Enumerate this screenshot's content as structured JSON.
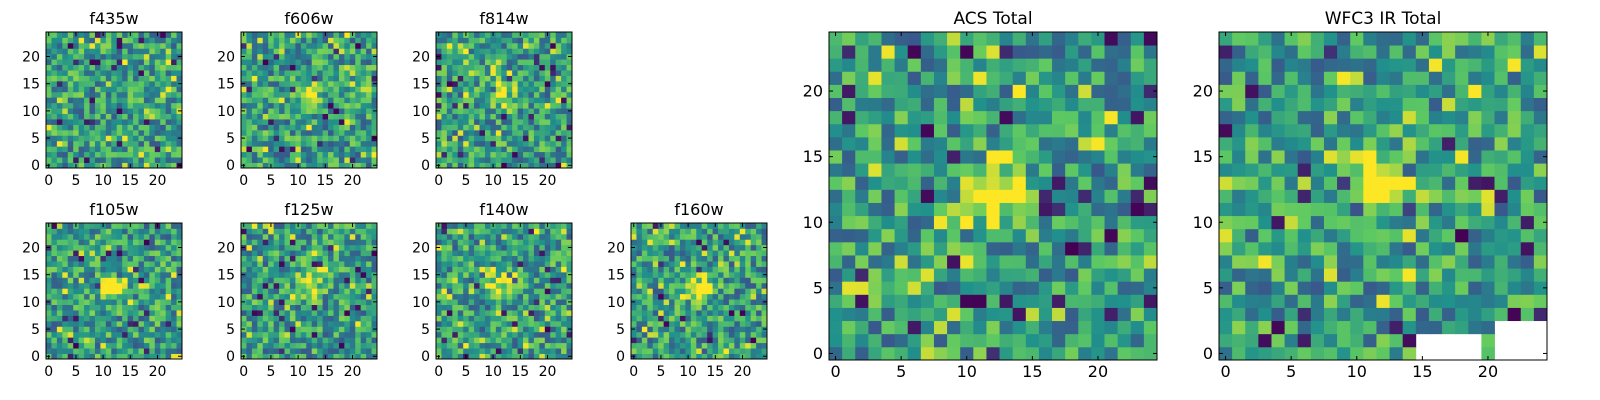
{
  "chart_data": [
    {
      "type": "heatmap",
      "title": "f435w",
      "x_ticks": [
        0,
        5,
        10,
        15,
        20
      ],
      "y_ticks": [
        0,
        5,
        10,
        15,
        20
      ],
      "xlim": [
        0,
        25
      ],
      "ylim": [
        0,
        25
      ],
      "grid_size": 25,
      "source_peak": null,
      "source_strength": 0.0,
      "colormap": "viridis"
    },
    {
      "type": "heatmap",
      "title": "f606w",
      "x_ticks": [
        0,
        5,
        10,
        15,
        20
      ],
      "y_ticks": [
        0,
        5,
        10,
        15,
        20
      ],
      "xlim": [
        0,
        25
      ],
      "ylim": [
        0,
        25
      ],
      "grid_size": 25,
      "source_peak": [
        12,
        13
      ],
      "source_strength": 0.35,
      "colormap": "viridis"
    },
    {
      "type": "heatmap",
      "title": "f814w",
      "x_ticks": [
        0,
        5,
        10,
        15,
        20
      ],
      "y_ticks": [
        0,
        5,
        10,
        15,
        20
      ],
      "xlim": [
        0,
        25
      ],
      "ylim": [
        0,
        25
      ],
      "grid_size": 25,
      "source_peak": [
        12,
        13
      ],
      "source_strength": 0.5,
      "colormap": "viridis"
    },
    {
      "type": "heatmap",
      "title": "f105w",
      "x_ticks": [
        0,
        5,
        10,
        15,
        20
      ],
      "y_ticks": [
        0,
        5,
        10,
        15,
        20
      ],
      "xlim": [
        0,
        25
      ],
      "ylim": [
        0,
        25
      ],
      "grid_size": 25,
      "source_peak": [
        12,
        13
      ],
      "source_strength": 0.7,
      "colormap": "viridis"
    },
    {
      "type": "heatmap",
      "title": "f125w",
      "x_ticks": [
        0,
        5,
        10,
        15,
        20
      ],
      "y_ticks": [
        0,
        5,
        10,
        15,
        20
      ],
      "xlim": [
        0,
        25
      ],
      "ylim": [
        0,
        25
      ],
      "grid_size": 25,
      "source_peak": [
        12,
        13
      ],
      "source_strength": 0.5,
      "colormap": "viridis"
    },
    {
      "type": "heatmap",
      "title": "f140w",
      "x_ticks": [
        0,
        5,
        10,
        15,
        20
      ],
      "y_ticks": [
        0,
        5,
        10,
        15,
        20
      ],
      "xlim": [
        0,
        25
      ],
      "ylim": [
        0,
        25
      ],
      "grid_size": 25,
      "source_peak": [
        12,
        13
      ],
      "source_strength": 0.55,
      "colormap": "viridis"
    },
    {
      "type": "heatmap",
      "title": "f160w",
      "x_ticks": [
        0,
        5,
        10,
        15,
        20
      ],
      "y_ticks": [
        0,
        5,
        10,
        15,
        20
      ],
      "xlim": [
        0,
        25
      ],
      "ylim": [
        0,
        25
      ],
      "grid_size": 25,
      "source_peak": [
        12,
        13
      ],
      "source_strength": 0.65,
      "colormap": "viridis"
    },
    {
      "type": "heatmap",
      "title": "ACS Total",
      "x_ticks": [
        0,
        5,
        10,
        15,
        20
      ],
      "y_ticks": [
        0,
        5,
        10,
        15,
        20
      ],
      "xlim": [
        0,
        25
      ],
      "ylim": [
        0,
        25
      ],
      "grid_size": 25,
      "source_peak": [
        12,
        12
      ],
      "source_strength": 0.6,
      "colormap": "viridis"
    },
    {
      "type": "heatmap",
      "title": "WFC3 IR Total",
      "x_ticks": [
        0,
        5,
        10,
        15,
        20
      ],
      "y_ticks": [
        0,
        5,
        10,
        15,
        20
      ],
      "xlim": [
        0,
        25
      ],
      "ylim": [
        0,
        25
      ],
      "grid_size": 25,
      "source_peak": [
        12,
        13
      ],
      "source_strength": 0.75,
      "colormap": "viridis",
      "masked_regions": [
        [
          15,
          0,
          20,
          2
        ],
        [
          21,
          0,
          25,
          3
        ]
      ]
    }
  ],
  "colors": {
    "viridis_stops": [
      "#440154",
      "#3b528b",
      "#21918c",
      "#5ec962",
      "#fde725"
    ],
    "axis": "#000000",
    "background": "#ffffff"
  }
}
